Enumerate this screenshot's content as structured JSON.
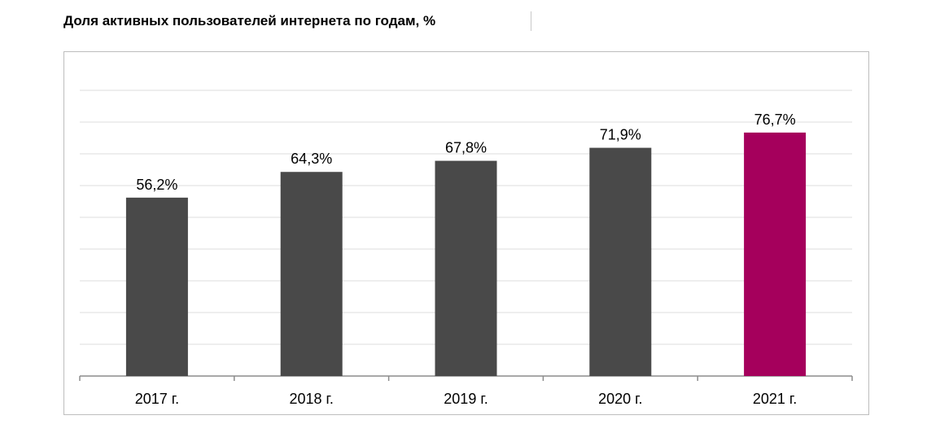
{
  "chart_data": {
    "type": "bar",
    "title": "Доля активных пользователей интернета по годам, %",
    "categories": [
      "2017 г.",
      "2018 г.",
      "2019 г.",
      "2020 г.",
      "2021 г."
    ],
    "values": [
      56.2,
      64.3,
      67.8,
      71.9,
      76.7
    ],
    "data_labels": [
      "56,2%",
      "64,3%",
      "67,8%",
      "71,9%",
      "76,7%"
    ],
    "xlabel": "",
    "ylabel": "",
    "ylim": [
      0,
      90
    ],
    "grid": true,
    "legend": "none",
    "colors": {
      "default_bar": "#494949",
      "highlight_bar": "#a5005c",
      "highlight_category": "2021 г.",
      "gridline": "#dcdcdc",
      "axis": "#8c8c8c"
    }
  }
}
